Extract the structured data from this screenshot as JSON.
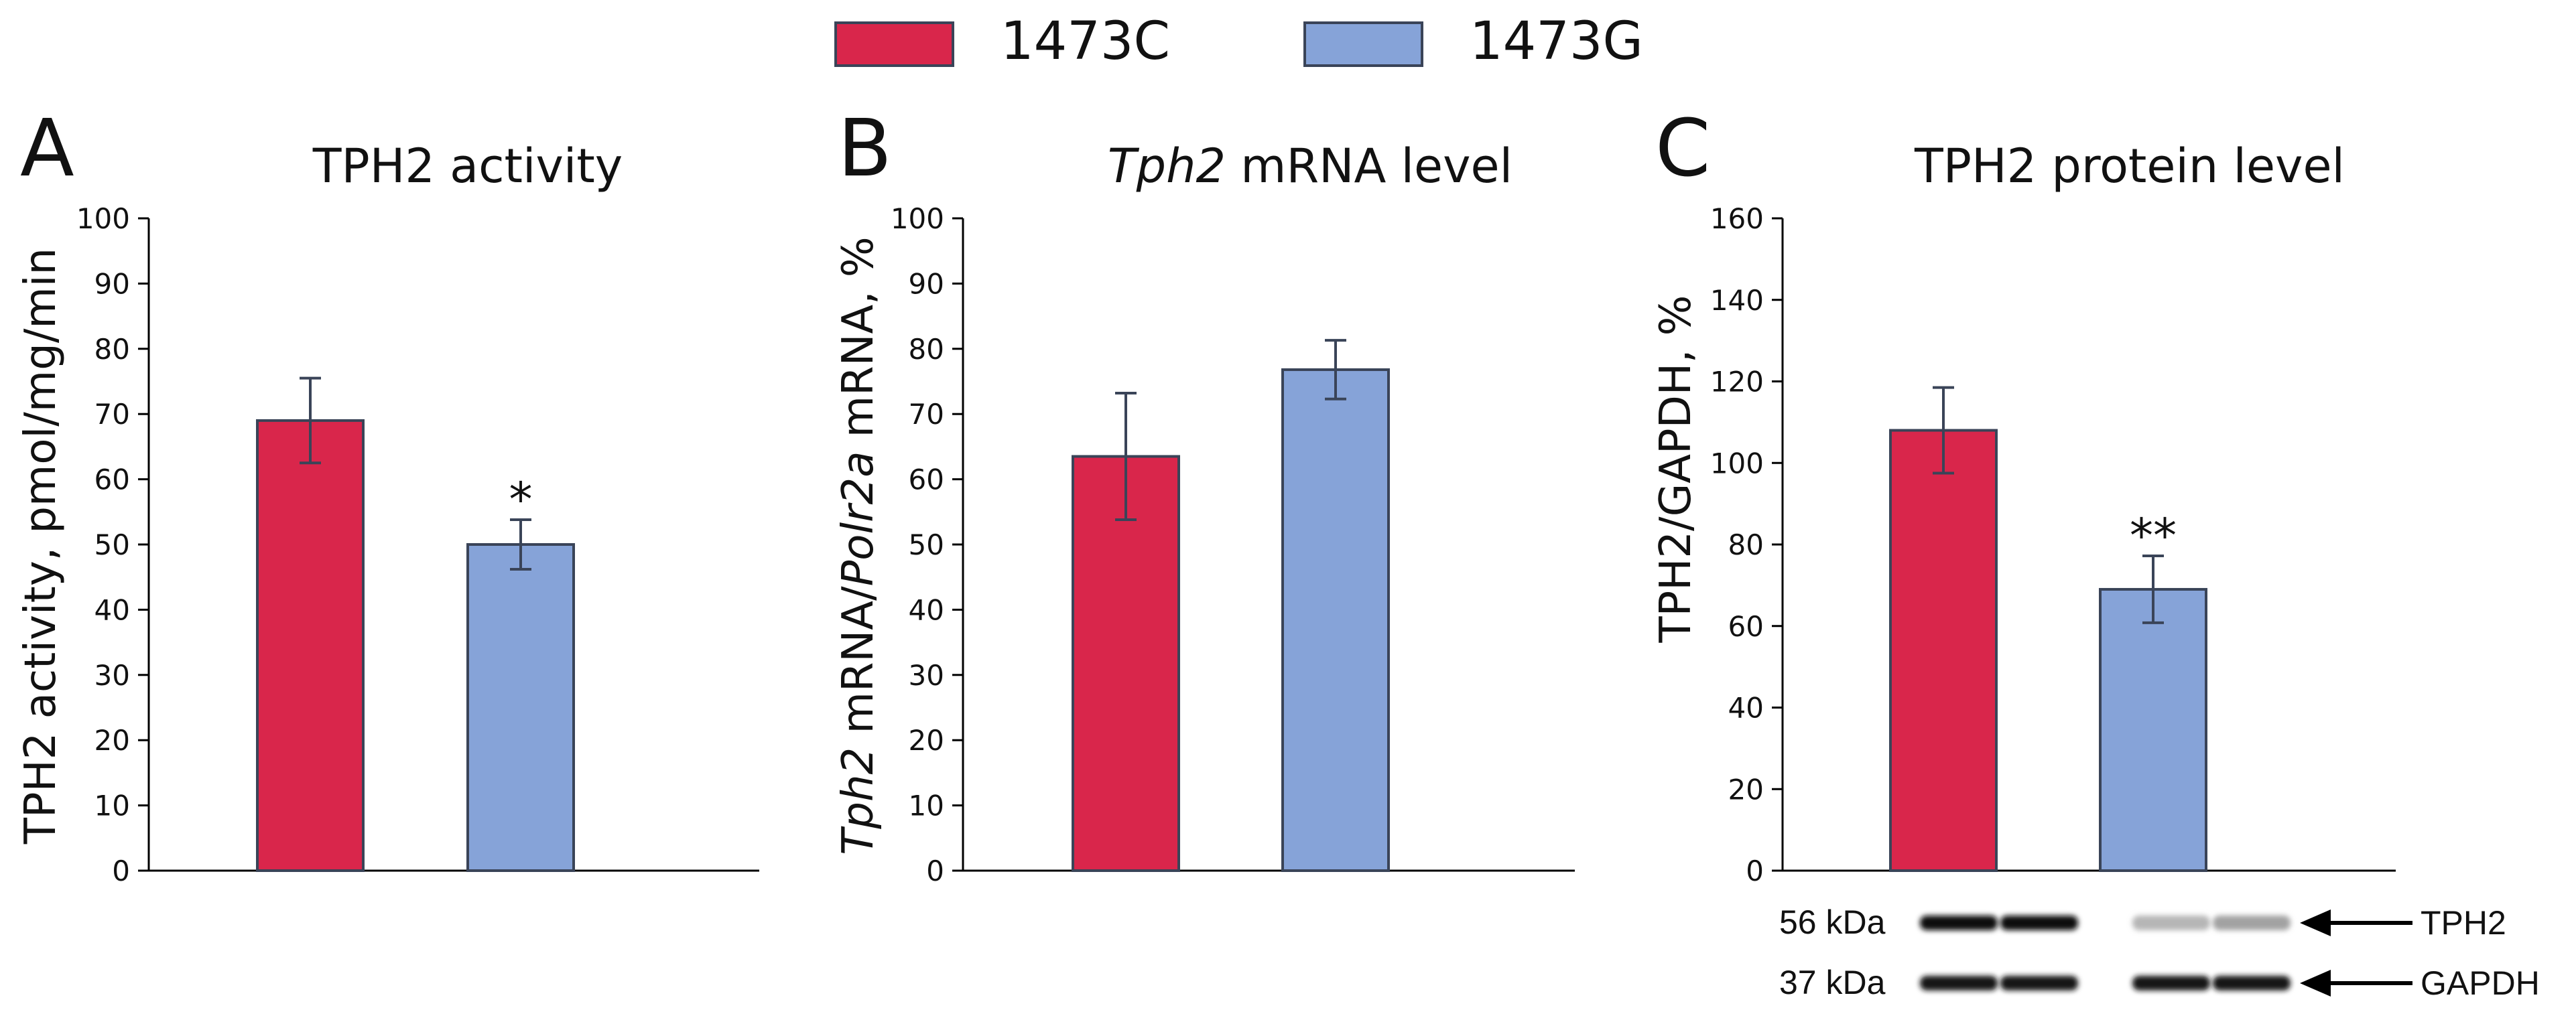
{
  "legend": [
    {
      "label": "1473C",
      "color": "#d9264b"
    },
    {
      "label": "1473G",
      "color": "#86a3d8"
    }
  ],
  "colors": {
    "stroke": "#3a4458",
    "axis": "#000000"
  },
  "chart_data": [
    {
      "type": "bar",
      "panel_letter": "A",
      "title": "TPH2 activity",
      "ylabel": "TPH2 activity, pmol/mg/min",
      "ylim": [
        0,
        100
      ],
      "yticks": [
        0,
        10,
        20,
        30,
        40,
        50,
        60,
        70,
        80,
        90,
        100
      ],
      "categories": [
        "1473C",
        "1473G"
      ],
      "values": [
        69,
        50
      ],
      "errors": [
        6.5,
        3.8
      ],
      "significance": [
        "",
        "*"
      ]
    },
    {
      "type": "bar",
      "panel_letter": "B",
      "title": "Tph2 mRNA level",
      "ylabel": "Tph2 mRNA/Polr2a mRNA, %",
      "ylim": [
        0,
        100
      ],
      "yticks": [
        0,
        10,
        20,
        30,
        40,
        50,
        60,
        70,
        80,
        90,
        100
      ],
      "categories": [
        "1473C",
        "1473G"
      ],
      "values": [
        63.5,
        76.8
      ],
      "errors": [
        9.7,
        4.5
      ],
      "significance": [
        "",
        ""
      ]
    },
    {
      "type": "bar",
      "panel_letter": "C",
      "title": "TPH2 protein level",
      "ylabel": "TPH2/GAPDH, %",
      "ylim": [
        0,
        160
      ],
      "yticks": [
        0,
        20,
        40,
        60,
        80,
        100,
        120,
        140,
        160
      ],
      "categories": [
        "1473C",
        "1473G"
      ],
      "values": [
        108,
        69
      ],
      "errors": [
        10.5,
        8.2
      ],
      "significance": [
        "",
        "**"
      ]
    }
  ],
  "blot": {
    "rows": [
      {
        "size_label": "56 kDa",
        "protein": "TPH2",
        "band_intensities": [
          1,
          1,
          0.3,
          0.38
        ]
      },
      {
        "size_label": "37 kDa",
        "protein": "GAPDH",
        "band_intensities": [
          0.95,
          0.95,
          0.95,
          0.95
        ]
      }
    ]
  }
}
